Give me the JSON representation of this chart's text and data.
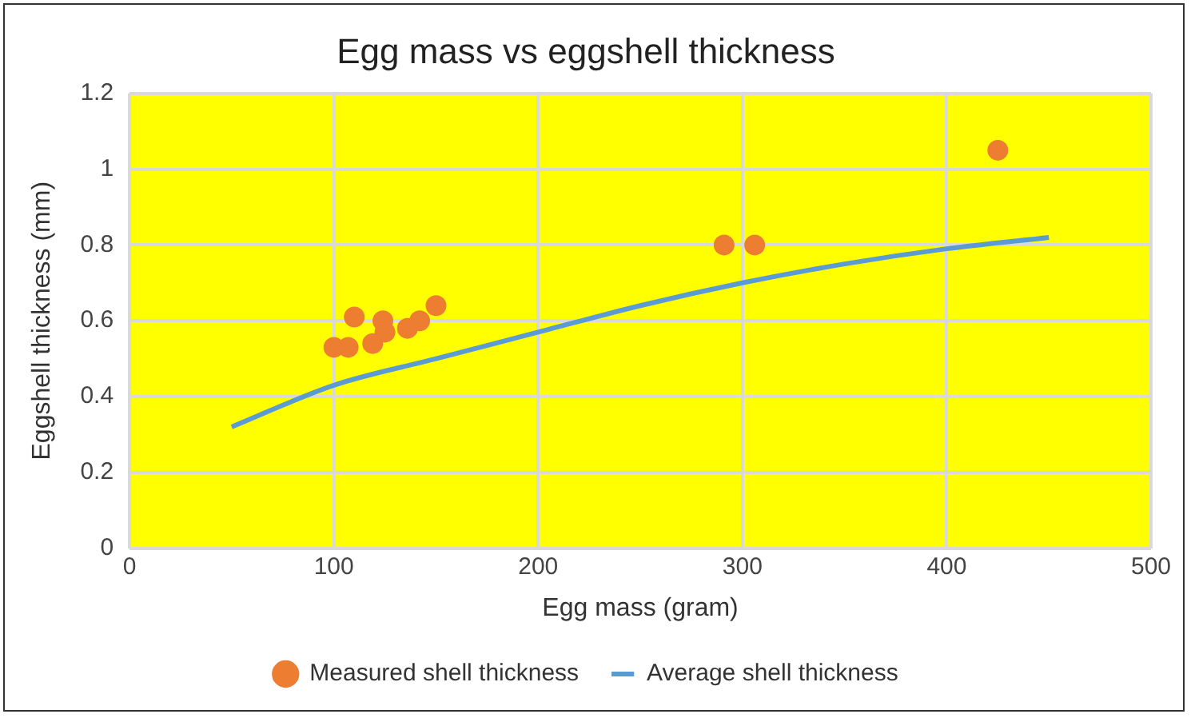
{
  "chart_data": {
    "type": "scatter",
    "title": "Egg mass vs eggshell thickness",
    "xlabel": "Egg mass (gram)",
    "ylabel": "Eggshell thickness (mm)",
    "xlim": [
      0,
      500
    ],
    "xticks": [
      0,
      100,
      200,
      300,
      400,
      500
    ],
    "ylim": [
      0,
      1.2
    ],
    "yticks": [
      0,
      0.2,
      0.4,
      0.6,
      0.8,
      1,
      1.2
    ],
    "grid": true,
    "legend": "bottom",
    "series": [
      {
        "name": "Measured shell thickness",
        "color": "#ed7d31",
        "marker": "circle",
        "x": [
          100,
          107,
          110,
          119,
          124,
          125,
          136,
          142,
          150,
          291,
          306,
          425
        ],
        "values": [
          0.53,
          0.53,
          0.61,
          0.54,
          0.6,
          0.57,
          0.58,
          0.6,
          0.64,
          0.8,
          0.8,
          1.05
        ]
      },
      {
        "name": "Average shell thickness",
        "type": "line",
        "color": "#5b9bd5",
        "marker": "none",
        "x": [
          50,
          100,
          150,
          200,
          250,
          300,
          350,
          400,
          450
        ],
        "values": [
          0.32,
          0.43,
          0.5,
          0.57,
          0.64,
          0.7,
          0.75,
          0.79,
          0.82
        ]
      }
    ]
  }
}
